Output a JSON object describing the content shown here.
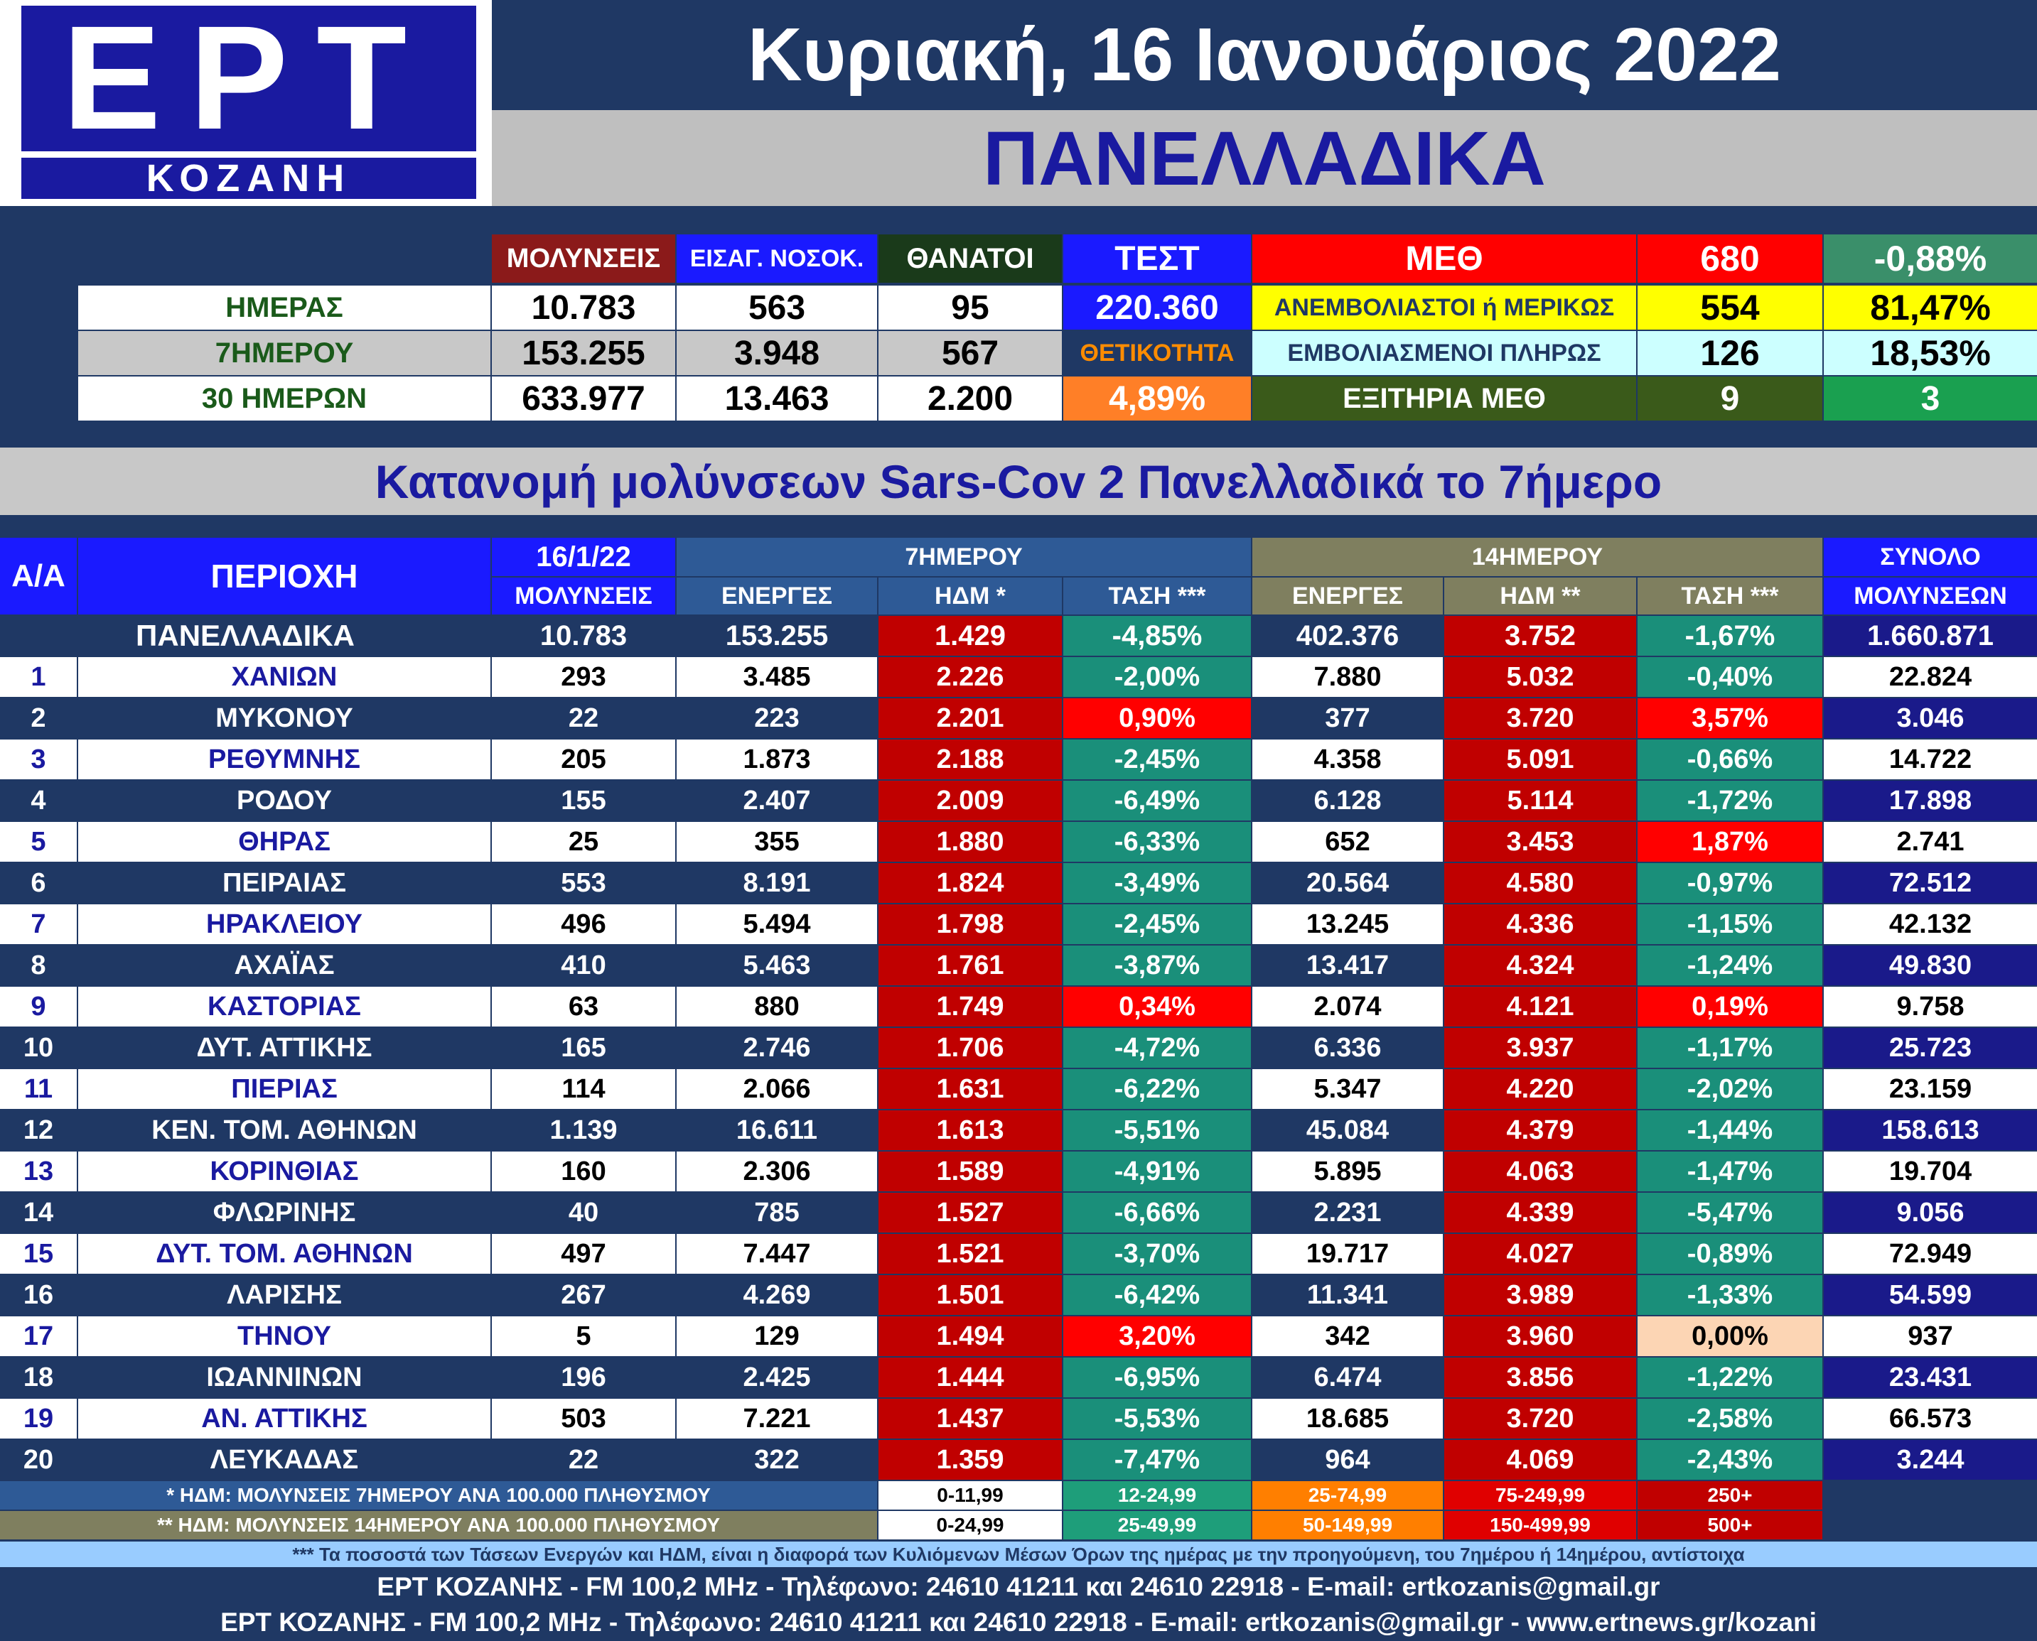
{
  "logo": {
    "main": "ΕΡΤ",
    "sub": "ΚΟΖΑΝΗ"
  },
  "header": {
    "date": "Κυριακή, 16 Ιανουάριος 2022",
    "region": "ΠΑΝΕΛΛΑΔΙΚΑ"
  },
  "stats": {
    "col_headers": [
      "ΜΟΛΥΝΣΕΙΣ",
      "ΕΙΣΑΓ. ΝΟΣΟΚ.",
      "ΘΑΝΑΤΟΙ",
      "ΤΕΣΤ"
    ],
    "rows": [
      {
        "label": "ΗΜΕΡΑΣ",
        "values": [
          "10.783",
          "563",
          "95"
        ]
      },
      {
        "label": "7ΗΜΕΡΟΥ",
        "values": [
          "153.255",
          "3.948",
          "567"
        ]
      },
      {
        "label": "30 ΗΜΕΡΩΝ",
        "values": [
          "633.977",
          "13.463",
          "2.200"
        ]
      }
    ],
    "test_value": "220.360",
    "positivity_label": "ΘΕΤΙΚΟΤΗΤΑ",
    "positivity_value": "4,89%",
    "icu": {
      "label": "ΜΕΘ",
      "value": "680",
      "change": "-0,88%",
      "unvaccinated_label": "ΑΝΕΜΒΟΛΙΑΣΤΟΙ ή ΜΕΡΙΚΩΣ",
      "unvaccinated_value": "554",
      "unvaccinated_pct": "81,47%",
      "vaccinated_label": "ΕΜΒΟΛΙΑΣΜΕΝΟΙ ΠΛΗΡΩΣ",
      "vaccinated_value": "126",
      "vaccinated_pct": "18,53%",
      "discharged_label": "ΕΞΙΤΗΡΙΑ ΜΕΘ",
      "discharged_value": "9",
      "discharged_extra": "3"
    }
  },
  "section_title": "Κατανομή μολύνσεων Sars-Cov 2 Πανελλαδικά το 7ήμερο",
  "table": {
    "headers": {
      "aa": "Α/Α",
      "area": "ΠΕΡΙΟΧΗ",
      "date": "16/1/22",
      "infections": "ΜΟΛΥΝΣΕΙΣ",
      "week": "7ΗΜΕΡΟΥ",
      "fortnight": "14ΗΜΕΡΟΥ",
      "total": "ΣΥΝΟΛΟ",
      "total_sub": "ΜΟΛΥΝΣΕΩΝ",
      "active": "ΕΝΕΡΓΕΣ",
      "ipm7": "ΗΔΜ *",
      "trend": "ΤΑΣΗ ***",
      "ipm14": "ΗΔΜ **"
    },
    "national": {
      "area": "ΠΑΝΕΛΛΑΔΙΚΑ",
      "day": "10.783",
      "a7": "153.255",
      "h7": "1.429",
      "t7": "-4,85%",
      "a14": "402.376",
      "h14": "3.752",
      "t14": "-1,67%",
      "total": "1.660.871"
    },
    "rows": [
      {
        "n": "1",
        "area": "ΧΑΝΙΩΝ",
        "day": "293",
        "a7": "3.485",
        "h7": "2.226",
        "t7": "-2,00%",
        "a14": "7.880",
        "h14": "5.032",
        "t14": "-0,40%",
        "total": "22.824"
      },
      {
        "n": "2",
        "area": "ΜΥΚΟΝΟΥ",
        "day": "22",
        "a7": "223",
        "h7": "2.201",
        "t7": "0,90%",
        "a14": "377",
        "h14": "3.720",
        "t14": "3,57%",
        "total": "3.046"
      },
      {
        "n": "3",
        "area": "ΡΕΘΥΜΝΗΣ",
        "day": "205",
        "a7": "1.873",
        "h7": "2.188",
        "t7": "-2,45%",
        "a14": "4.358",
        "h14": "5.091",
        "t14": "-0,66%",
        "total": "14.722"
      },
      {
        "n": "4",
        "area": "ΡΟΔΟΥ",
        "day": "155",
        "a7": "2.407",
        "h7": "2.009",
        "t7": "-6,49%",
        "a14": "6.128",
        "h14": "5.114",
        "t14": "-1,72%",
        "total": "17.898"
      },
      {
        "n": "5",
        "area": "ΘΗΡΑΣ",
        "day": "25",
        "a7": "355",
        "h7": "1.880",
        "t7": "-6,33%",
        "a14": "652",
        "h14": "3.453",
        "t14": "1,87%",
        "total": "2.741"
      },
      {
        "n": "6",
        "area": "ΠΕΙΡΑΙΑΣ",
        "day": "553",
        "a7": "8.191",
        "h7": "1.824",
        "t7": "-3,49%",
        "a14": "20.564",
        "h14": "4.580",
        "t14": "-0,97%",
        "total": "72.512"
      },
      {
        "n": "7",
        "area": "ΗΡΑΚΛΕΙΟΥ",
        "day": "496",
        "a7": "5.494",
        "h7": "1.798",
        "t7": "-2,45%",
        "a14": "13.245",
        "h14": "4.336",
        "t14": "-1,15%",
        "total": "42.132"
      },
      {
        "n": "8",
        "area": "ΑΧΑΪΑΣ",
        "day": "410",
        "a7": "5.463",
        "h7": "1.761",
        "t7": "-3,87%",
        "a14": "13.417",
        "h14": "4.324",
        "t14": "-1,24%",
        "total": "49.830"
      },
      {
        "n": "9",
        "area": "ΚΑΣΤΟΡΙΑΣ",
        "day": "63",
        "a7": "880",
        "h7": "1.749",
        "t7": "0,34%",
        "a14": "2.074",
        "h14": "4.121",
        "t14": "0,19%",
        "total": "9.758"
      },
      {
        "n": "10",
        "area": "ΔΥΤ. ΑΤΤΙΚΗΣ",
        "day": "165",
        "a7": "2.746",
        "h7": "1.706",
        "t7": "-4,72%",
        "a14": "6.336",
        "h14": "3.937",
        "t14": "-1,17%",
        "total": "25.723"
      },
      {
        "n": "11",
        "area": "ΠΙΕΡΙΑΣ",
        "day": "114",
        "a7": "2.066",
        "h7": "1.631",
        "t7": "-6,22%",
        "a14": "5.347",
        "h14": "4.220",
        "t14": "-2,02%",
        "total": "23.159"
      },
      {
        "n": "12",
        "area": "ΚΕΝ. ΤΟΜ. ΑΘΗΝΩΝ",
        "day": "1.139",
        "a7": "16.611",
        "h7": "1.613",
        "t7": "-5,51%",
        "a14": "45.084",
        "h14": "4.379",
        "t14": "-1,44%",
        "total": "158.613"
      },
      {
        "n": "13",
        "area": "ΚΟΡΙΝΘΙΑΣ",
        "day": "160",
        "a7": "2.306",
        "h7": "1.589",
        "t7": "-4,91%",
        "a14": "5.895",
        "h14": "4.063",
        "t14": "-1,47%",
        "total": "19.704"
      },
      {
        "n": "14",
        "area": "ΦΛΩΡΙΝΗΣ",
        "day": "40",
        "a7": "785",
        "h7": "1.527",
        "t7": "-6,66%",
        "a14": "2.231",
        "h14": "4.339",
        "t14": "-5,47%",
        "total": "9.056"
      },
      {
        "n": "15",
        "area": "ΔΥΤ. ΤΟΜ. ΑΘΗΝΩΝ",
        "day": "497",
        "a7": "7.447",
        "h7": "1.521",
        "t7": "-3,70%",
        "a14": "19.717",
        "h14": "4.027",
        "t14": "-0,89%",
        "total": "72.949"
      },
      {
        "n": "16",
        "area": "ΛΑΡΙΣΗΣ",
        "day": "267",
        "a7": "4.269",
        "h7": "1.501",
        "t7": "-6,42%",
        "a14": "11.341",
        "h14": "3.989",
        "t14": "-1,33%",
        "total": "54.599"
      },
      {
        "n": "17",
        "area": "ΤΗΝΟΥ",
        "day": "5",
        "a7": "129",
        "h7": "1.494",
        "t7": "3,20%",
        "a14": "342",
        "h14": "3.960",
        "t14": "0,00%",
        "total": "937"
      },
      {
        "n": "18",
        "area": "ΙΩΑΝΝΙΝΩΝ",
        "day": "196",
        "a7": "2.425",
        "h7": "1.444",
        "t7": "-6,95%",
        "a14": "6.474",
        "h14": "3.856",
        "t14": "-1,22%",
        "total": "23.431"
      },
      {
        "n": "19",
        "area": "ΑΝ. ΑΤΤΙΚΗΣ",
        "day": "503",
        "a7": "7.221",
        "h7": "1.437",
        "t7": "-5,53%",
        "a14": "18.685",
        "h14": "3.720",
        "t14": "-2,58%",
        "total": "66.573"
      },
      {
        "n": "20",
        "area": "ΛΕΥΚΑΔΑΣ",
        "day": "22",
        "a7": "322",
        "h7": "1.359",
        "t7": "-7,47%",
        "a14": "964",
        "h14": "4.069",
        "t14": "-2,43%",
        "total": "3.244"
      }
    ]
  },
  "legend": {
    "ipm7_label": "* ΗΔΜ: ΜΟΛΥΝΣΕΙΣ 7ΗΜΕΡΟΥ ΑΝΑ 100.000 ΠΛΗΘΥΣΜΟΥ",
    "ipm7_ranges": [
      "0-11,99",
      "12-24,99",
      "25-74,99",
      "75-249,99",
      "250+"
    ],
    "ipm14_label": "** ΗΔΜ: ΜΟΛΥΝΣΕΙΣ 14ΗΜΕΡΟΥ ΑΝΑ 100.000 ΠΛΗΘΥΣΜΟΥ",
    "ipm14_ranges": [
      "0-24,99",
      "25-49,99",
      "50-149,99",
      "150-499,99",
      "500+"
    ],
    "range_colors": [
      "#ffffff",
      "#1e9e7a",
      "#ff7f00",
      "#e00000",
      "#c00000"
    ]
  },
  "footer": {
    "note": "*** Τα ποσοστά των Τάσεων Ενεργών και ΗΔΜ, είναι η διαφορά των Κυλιόμενων Μέσων Όρων της ημέρας με την προηγούμενη, του 7ημέρου ή 14ημέρου, αντίστοιχα",
    "line1": "ΕΡΤ ΚΟΖΑΝΗΣ - FM 100,2 MHz - Τηλέφωνο:  24610 41211 και 24610 22918 - E-mail: ertkozanis@gmail.gr",
    "line2": "ΕΡΤ ΚΟΖΑΝΗΣ - FM 100,2 MHz - Τηλέφωνο:  24610 41211 και 24610 22918 - E-mail: ertkozanis@gmail.gr - www.ertnews.gr/kozani"
  },
  "colors": {
    "navy": "#1f3864",
    "blue": "#1a1aff",
    "royal": "#2e5a96",
    "olive": "#7f7f5f",
    "trend_green": "#1a8f7a",
    "trend_red": "#ff0000",
    "ipm_red": "#c00000",
    "peach": "#fcd5b4"
  }
}
